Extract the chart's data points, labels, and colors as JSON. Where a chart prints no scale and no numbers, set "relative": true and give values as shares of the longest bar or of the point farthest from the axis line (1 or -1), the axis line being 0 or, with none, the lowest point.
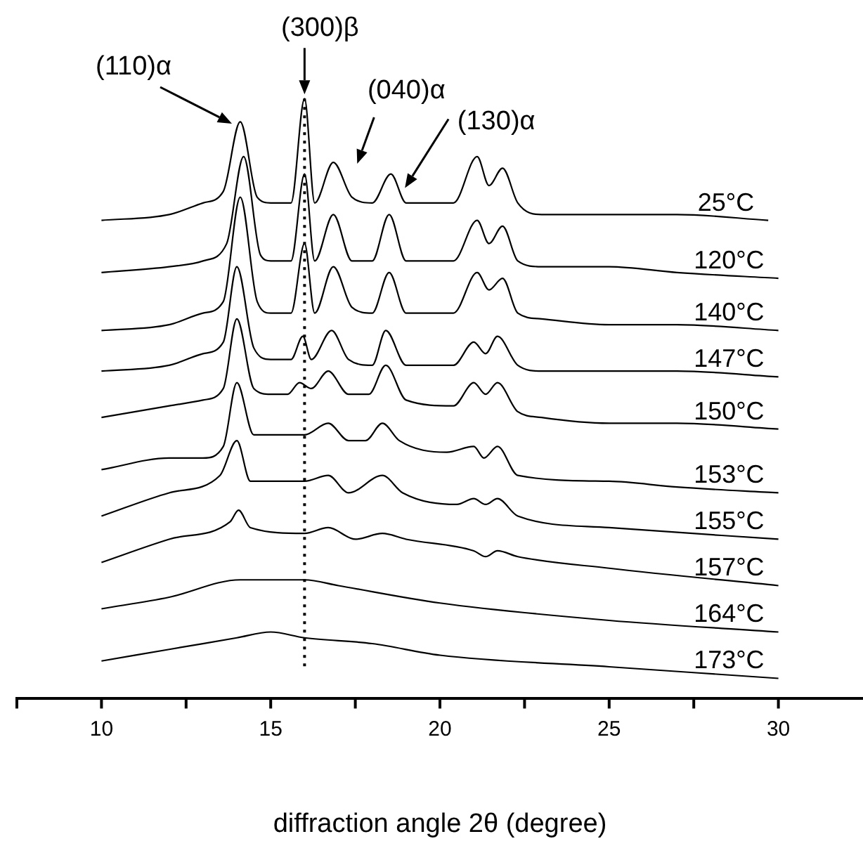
{
  "chart_data": {
    "type": "line",
    "relative": true,
    "xlabel": "diffraction angle 2θ (degree)",
    "xlim": [
      7.5,
      32.5
    ],
    "xticks": [
      10,
      15,
      20,
      25,
      30
    ],
    "grid": false,
    "legend": false,
    "marker": "none",
    "line_style": "solid",
    "ref_lines": [
      {
        "axis": "x",
        "value": 16,
        "line_style": "dotted",
        "color": "#000000"
      }
    ],
    "annotations": [
      "(110)α",
      {
        "text": "(300)β",
        "x": 16,
        "y": 1.0
      },
      {
        "text": "(040)α",
        "x": 16.85,
        "y": 0.89
      },
      {
        "text": "(130)α",
        "x": 18.55,
        "y": 0.87
      }
    ],
    "series": [
      {
        "name": "25°C",
        "color": "#000000",
        "x": [
          10,
          12,
          13,
          13.6,
          14.1,
          14.6,
          15,
          15.6,
          16,
          16.3,
          16.85,
          17.4,
          18,
          18.55,
          19,
          20.4,
          21.1,
          21.45,
          21.85,
          22.3,
          23,
          25,
          27,
          29.7
        ],
        "values": [
          0.79,
          0.8,
          0.82,
          0.84,
          0.96,
          0.83,
          0.82,
          0.82,
          1.0,
          0.82,
          0.89,
          0.83,
          0.82,
          0.87,
          0.82,
          0.82,
          0.9,
          0.85,
          0.88,
          0.82,
          0.8,
          0.8,
          0.8,
          0.79
        ]
      },
      {
        "name": "120°C",
        "color": "#000000",
        "x": [
          10,
          12,
          13,
          13.7,
          14.2,
          14.7,
          15,
          15.6,
          16,
          16.3,
          16.85,
          17.4,
          18,
          18.5,
          19,
          20.4,
          21.1,
          21.45,
          21.85,
          22.3,
          23,
          25,
          27,
          30
        ],
        "values": [
          0.7,
          0.71,
          0.72,
          0.75,
          0.9,
          0.73,
          0.72,
          0.72,
          0.87,
          0.72,
          0.8,
          0.72,
          0.72,
          0.8,
          0.72,
          0.72,
          0.79,
          0.75,
          0.78,
          0.72,
          0.71,
          0.71,
          0.7,
          0.69
        ]
      },
      {
        "name": "140°C",
        "color": "#000000",
        "x": [
          10,
          12,
          13,
          13.6,
          14.1,
          14.6,
          15,
          15.6,
          16,
          16.3,
          16.85,
          17.4,
          18,
          18.5,
          19,
          20.4,
          21.1,
          21.45,
          21.85,
          22.3,
          23,
          25,
          27,
          30
        ],
        "values": [
          0.6,
          0.61,
          0.63,
          0.65,
          0.83,
          0.65,
          0.63,
          0.63,
          0.75,
          0.63,
          0.71,
          0.64,
          0.63,
          0.7,
          0.63,
          0.63,
          0.7,
          0.67,
          0.69,
          0.63,
          0.62,
          0.61,
          0.61,
          0.6
        ]
      },
      {
        "name": "147°C",
        "color": "#000000",
        "x": [
          10,
          12,
          13,
          13.6,
          14,
          14.5,
          15,
          15.6,
          15.95,
          16.2,
          16.8,
          17.3,
          18,
          18.4,
          19,
          20.4,
          21,
          21.35,
          21.7,
          22.3,
          23,
          25,
          27,
          30
        ],
        "values": [
          0.53,
          0.54,
          0.56,
          0.58,
          0.71,
          0.57,
          0.55,
          0.55,
          0.59,
          0.55,
          0.6,
          0.55,
          0.54,
          0.6,
          0.54,
          0.54,
          0.58,
          0.56,
          0.59,
          0.54,
          0.53,
          0.53,
          0.53,
          0.52
        ]
      },
      {
        "name": "150°C",
        "color": "#000000",
        "x": [
          10,
          12,
          13,
          13.6,
          14,
          14.5,
          15,
          15.5,
          15.85,
          16.2,
          16.7,
          17.3,
          17.9,
          18.4,
          19,
          20.4,
          21,
          21.35,
          21.7,
          22.3,
          23,
          25,
          27,
          30
        ],
        "values": [
          0.45,
          0.47,
          0.48,
          0.5,
          0.62,
          0.5,
          0.49,
          0.49,
          0.51,
          0.5,
          0.53,
          0.49,
          0.49,
          0.54,
          0.48,
          0.47,
          0.51,
          0.49,
          0.51,
          0.46,
          0.45,
          0.44,
          0.44,
          0.43
        ]
      },
      {
        "name": "153°C",
        "color": "#000000",
        "x": [
          10,
          12,
          13,
          13.6,
          14,
          14.5,
          15,
          16,
          16.7,
          17.3,
          17.8,
          18.3,
          18.8,
          20.2,
          21,
          21.3,
          21.7,
          22.3,
          25,
          27,
          30
        ],
        "values": [
          0.36,
          0.38,
          0.38,
          0.4,
          0.51,
          0.42,
          0.42,
          0.42,
          0.44,
          0.41,
          0.41,
          0.44,
          0.41,
          0.39,
          0.4,
          0.38,
          0.4,
          0.35,
          0.34,
          0.33,
          0.32
        ]
      },
      {
        "name": "155°C",
        "color": "#000000",
        "x": [
          10,
          12,
          13.5,
          14,
          14.4,
          16,
          16.7,
          17.3,
          18.3,
          18.9,
          20.5,
          21,
          21.35,
          21.7,
          22.3,
          25,
          30
        ],
        "values": [
          0.28,
          0.32,
          0.35,
          0.41,
          0.34,
          0.34,
          0.35,
          0.32,
          0.35,
          0.32,
          0.3,
          0.31,
          0.3,
          0.31,
          0.28,
          0.26,
          0.24
        ]
      },
      {
        "name": "157°C",
        "color": "#000000",
        "x": [
          10,
          12,
          13.8,
          14.05,
          14.4,
          16,
          16.7,
          17.5,
          18.3,
          19,
          21,
          21.35,
          21.7,
          22.3,
          25,
          30
        ],
        "values": [
          0.2,
          0.24,
          0.27,
          0.29,
          0.26,
          0.25,
          0.26,
          0.24,
          0.25,
          0.24,
          0.22,
          0.21,
          0.22,
          0.21,
          0.19,
          0.16
        ]
      },
      {
        "name": "164°C",
        "color": "#000000",
        "x": [
          10,
          12,
          14.1,
          15,
          16,
          17,
          20,
          25,
          30
        ],
        "values": [
          0.12,
          0.14,
          0.17,
          0.17,
          0.17,
          0.16,
          0.13,
          0.1,
          0.08
        ]
      },
      {
        "name": "173°C",
        "color": "#000000",
        "x": [
          10,
          12,
          14,
          15,
          16,
          18,
          20,
          25,
          30
        ],
        "values": [
          0.03,
          0.05,
          0.07,
          0.08,
          0.07,
          0.06,
          0.04,
          0.02,
          0.0
        ]
      }
    ]
  }
}
